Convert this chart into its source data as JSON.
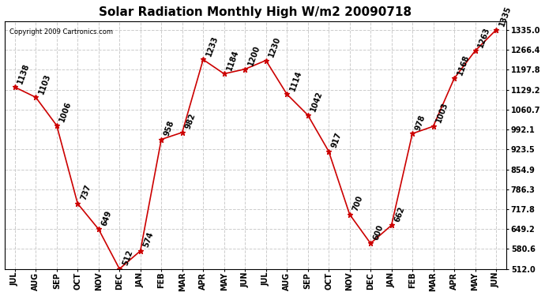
{
  "title": "Solar Radiation Monthly High W/m2 20090718",
  "copyright": "Copyright 2009 Cartronics.com",
  "months": [
    "JUL",
    "AUG",
    "SEP",
    "OCT",
    "NOV",
    "DEC",
    "JAN",
    "FEB",
    "MAR",
    "APR",
    "MAY",
    "JUN",
    "JUL",
    "AUG",
    "SEP",
    "OCT",
    "NOV",
    "DEC",
    "JAN",
    "FEB",
    "MAR",
    "APR",
    "MAY",
    "JUN"
  ],
  "values": [
    1138,
    1103,
    1006,
    737,
    649,
    512,
    574,
    958,
    982,
    1233,
    1184,
    1200,
    1230,
    1114,
    1042,
    917,
    700,
    600,
    662,
    978,
    1003,
    1168,
    1263,
    1335
  ],
  "line_color": "#cc0000",
  "marker": "*",
  "marker_size": 5,
  "bg_color": "#ffffff",
  "plot_bg_color": "#ffffff",
  "grid_color": "#cccccc",
  "label_color": "#000000",
  "ylim_min": 512.0,
  "ylim_max": 1335.0,
  "yticks": [
    512.0,
    580.6,
    649.2,
    717.8,
    786.3,
    854.9,
    923.5,
    992.1,
    1060.7,
    1129.2,
    1197.8,
    1266.4,
    1335.0
  ],
  "title_fontsize": 11,
  "label_fontsize": 7,
  "annotation_fontsize": 7,
  "annotation_rotation": 70,
  "copyright_fontsize": 6
}
